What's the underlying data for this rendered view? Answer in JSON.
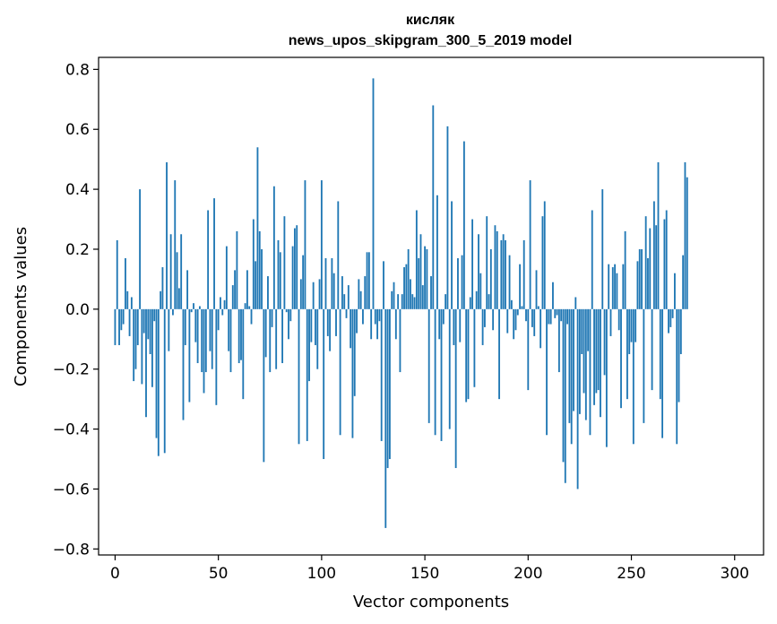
{
  "chart_data": {
    "type": "bar",
    "title_line1": "кисляк",
    "title_line2": "news_upos_skipgram_300_5_2019 model",
    "xlabel": "Vector components",
    "ylabel": "Components values",
    "xlim": [
      -8,
      314
    ],
    "ylim": [
      -0.82,
      0.84
    ],
    "x_ticks": [
      0,
      50,
      100,
      150,
      200,
      250,
      300
    ],
    "y_ticks": [
      -0.8,
      -0.6,
      -0.4,
      -0.2,
      0.0,
      0.2,
      0.4,
      0.6,
      0.8
    ],
    "x_tick_labels": [
      "0",
      "50",
      "100",
      "150",
      "200",
      "250",
      "300"
    ],
    "y_tick_labels": [
      "−0.8",
      "−0.6",
      "−0.4",
      "−0.2",
      "0.0",
      "0.2",
      "0.4",
      "0.6",
      "0.8"
    ],
    "bar_color": "#1f77b4",
    "values": [
      -0.12,
      0.23,
      -0.12,
      -0.07,
      -0.05,
      0.17,
      0.06,
      -0.09,
      0.04,
      -0.24,
      -0.2,
      -0.12,
      0.4,
      -0.25,
      -0.08,
      -0.36,
      -0.1,
      -0.15,
      -0.26,
      -0.04,
      -0.43,
      -0.49,
      0.06,
      0.14,
      -0.48,
      0.49,
      -0.14,
      0.25,
      -0.02,
      0.43,
      0.19,
      0.07,
      0.25,
      -0.37,
      -0.12,
      0.13,
      -0.31,
      -0.01,
      0.02,
      -0.11,
      -0.18,
      0.01,
      -0.21,
      -0.28,
      -0.21,
      0.33,
      -0.14,
      -0.2,
      0.37,
      -0.32,
      -0.07,
      0.04,
      -0.02,
      0.03,
      0.21,
      -0.14,
      -0.21,
      0.08,
      0.13,
      0.26,
      -0.18,
      -0.17,
      -0.3,
      0.02,
      0.13,
      0.01,
      -0.05,
      0.3,
      0.16,
      0.54,
      0.26,
      0.2,
      -0.51,
      -0.16,
      0.11,
      -0.21,
      -0.06,
      0.41,
      -0.2,
      0.23,
      0.19,
      -0.18,
      0.31,
      -0.01,
      -0.1,
      -0.04,
      0.21,
      0.27,
      0.28,
      -0.45,
      0.1,
      0.18,
      0.43,
      -0.44,
      -0.24,
      -0.11,
      0.09,
      -0.12,
      -0.2,
      0.1,
      0.43,
      -0.5,
      0.17,
      -0.09,
      -0.14,
      0.17,
      0.12,
      -0.09,
      0.36,
      -0.42,
      0.11,
      0.05,
      -0.03,
      0.08,
      -0.13,
      -0.43,
      -0.29,
      -0.08,
      0.1,
      0.06,
      -0.05,
      0.11,
      0.19,
      0.19,
      -0.1,
      0.77,
      -0.05,
      -0.1,
      -0.04,
      -0.44,
      0.16,
      -0.73,
      -0.53,
      -0.5,
      0.06,
      0.09,
      -0.1,
      0.05,
      -0.21,
      0.05,
      0.14,
      0.15,
      0.2,
      0.1,
      0.05,
      0.04,
      0.33,
      0.17,
      0.25,
      0.08,
      0.21,
      0.2,
      -0.38,
      0.11,
      0.68,
      -0.42,
      0.38,
      -0.1,
      -0.44,
      -0.05,
      0.05,
      0.61,
      -0.4,
      0.36,
      -0.12,
      -0.53,
      0.17,
      -0.11,
      0.18,
      0.56,
      -0.31,
      -0.3,
      0.04,
      0.3,
      -0.26,
      0.06,
      0.25,
      0.12,
      -0.12,
      -0.06,
      0.31,
      0.05,
      0.2,
      -0.07,
      0.28,
      0.26,
      -0.3,
      0.23,
      0.25,
      0.23,
      -0.08,
      0.18,
      0.03,
      -0.1,
      -0.07,
      -0.02,
      0.15,
      0.01,
      0.23,
      -0.04,
      -0.27,
      0.43,
      -0.06,
      -0.09,
      0.13,
      0.01,
      -0.13,
      0.31,
      0.36,
      -0.42,
      -0.05,
      -0.05,
      0.09,
      -0.03,
      -0.02,
      -0.21,
      -0.04,
      -0.51,
      -0.58,
      -0.05,
      -0.38,
      -0.45,
      -0.34,
      0.04,
      -0.6,
      -0.35,
      -0.15,
      -0.28,
      -0.37,
      -0.14,
      -0.42,
      0.33,
      -0.32,
      -0.28,
      -0.27,
      -0.36,
      0.4,
      -0.22,
      -0.46,
      0.15,
      -0.09,
      0.14,
      0.15,
      0.12,
      -0.07,
      -0.33,
      0.15,
      0.26,
      -0.3,
      -0.15,
      -0.11,
      -0.45,
      -0.11,
      0.16,
      0.2,
      0.2,
      -0.38,
      0.31,
      0.17,
      0.27,
      -0.27,
      0.36,
      0.28,
      0.49,
      -0.3,
      -0.43,
      0.3,
      0.33,
      -0.08,
      -0.06,
      -0.03,
      0.12,
      -0.45,
      -0.31,
      -0.15,
      0.18,
      0.49,
      0.44
    ]
  }
}
